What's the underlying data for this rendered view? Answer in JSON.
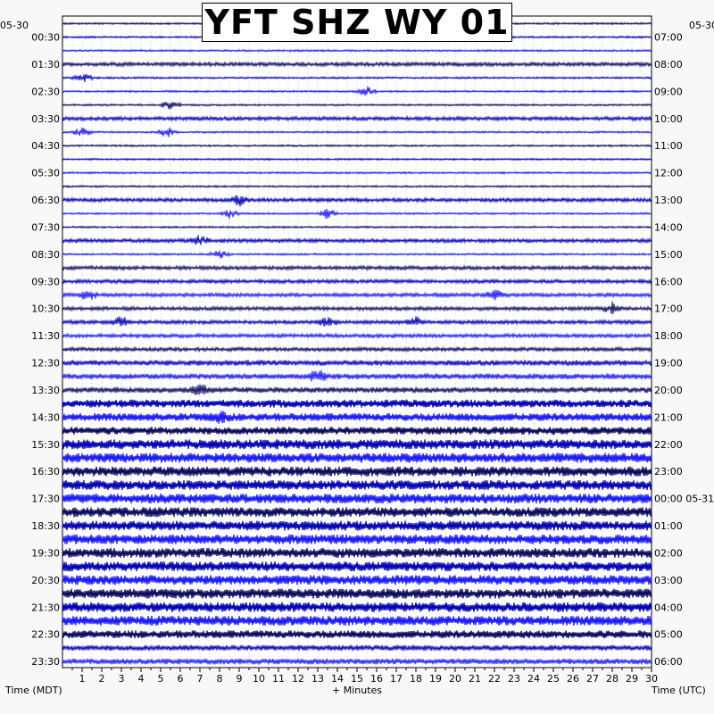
{
  "title": "YFT SHZ WY 01",
  "left_axis_label": "Time (MDT)",
  "bottom_axis_label": "+ Minutes",
  "right_axis_label": "Time (UTC)",
  "left_date": "05-30",
  "right_date": "05-30",
  "colors": {
    "trace_dark": "#0a0a5e",
    "trace_mid": "#0000b4",
    "trace_light": "#1a1aff",
    "background": "#ffffff",
    "grid": "#aaaaaa"
  },
  "chart_data": {
    "type": "heatmap",
    "description_kind": "helicorder",
    "x": {
      "label": "+ Minutes",
      "range": [
        0,
        30
      ],
      "ticks": [
        "1",
        "2",
        "3",
        "4",
        "5",
        "6",
        "7",
        "8",
        "9",
        "10",
        "11",
        "12",
        "13",
        "14",
        "15",
        "16",
        "17",
        "18",
        "19",
        "20",
        "21",
        "22",
        "23",
        "24",
        "25",
        "26",
        "27",
        "28",
        "29",
        "30"
      ]
    },
    "left_ticks": [
      "00:30",
      "01:30",
      "02:30",
      "03:30",
      "04:30",
      "05:30",
      "06:30",
      "07:30",
      "08:30",
      "09:30",
      "10:30",
      "11:30",
      "12:30",
      "13:30",
      "14:30",
      "15:30",
      "16:30",
      "17:30",
      "18:30",
      "19:30",
      "20:30",
      "21:30",
      "22:30",
      "23:30"
    ],
    "right_ticks": [
      "07:00",
      "08:00",
      "09:00",
      "10:00",
      "11:00",
      "12:00",
      "13:00",
      "14:00",
      "15:00",
      "16:00",
      "17:00",
      "18:00",
      "19:00",
      "20:00",
      "21:00",
      "22:00",
      "23:00",
      "00:00 05-31",
      "01:00",
      "02:00",
      "03:00",
      "04:00",
      "05:00",
      "06:00"
    ],
    "rows": 48,
    "amplitude_by_row": [
      1,
      1,
      1,
      2,
      1,
      1,
      1,
      2,
      1,
      1,
      1,
      1,
      1,
      2,
      1,
      1,
      2,
      1,
      2,
      2,
      2,
      2,
      2,
      2,
      2,
      3,
      3,
      3,
      4,
      4,
      4,
      5,
      5,
      5,
      5,
      5,
      5,
      5,
      5,
      5,
      5,
      5,
      5,
      5,
      5,
      4,
      3,
      3
    ],
    "events": [
      {
        "row": 4,
        "minute": 1.0
      },
      {
        "row": 5,
        "minute": 15.5
      },
      {
        "row": 6,
        "minute": 5.5
      },
      {
        "row": 8,
        "minute": 1.0
      },
      {
        "row": 8,
        "minute": 5.3
      },
      {
        "row": 13,
        "minute": 9.0
      },
      {
        "row": 14,
        "minute": 8.5
      },
      {
        "row": 14,
        "minute": 13.5
      },
      {
        "row": 16,
        "minute": 7.0
      },
      {
        "row": 17,
        "minute": 8.0
      },
      {
        "row": 20,
        "minute": 1.3
      },
      {
        "row": 20,
        "minute": 22.0
      },
      {
        "row": 21,
        "minute": 28.0
      },
      {
        "row": 22,
        "minute": 3.0
      },
      {
        "row": 22,
        "minute": 13.5
      },
      {
        "row": 22,
        "minute": 18.0
      },
      {
        "row": 26,
        "minute": 13.0
      },
      {
        "row": 27,
        "minute": 7.0
      },
      {
        "row": 29,
        "minute": 8.0
      }
    ]
  }
}
